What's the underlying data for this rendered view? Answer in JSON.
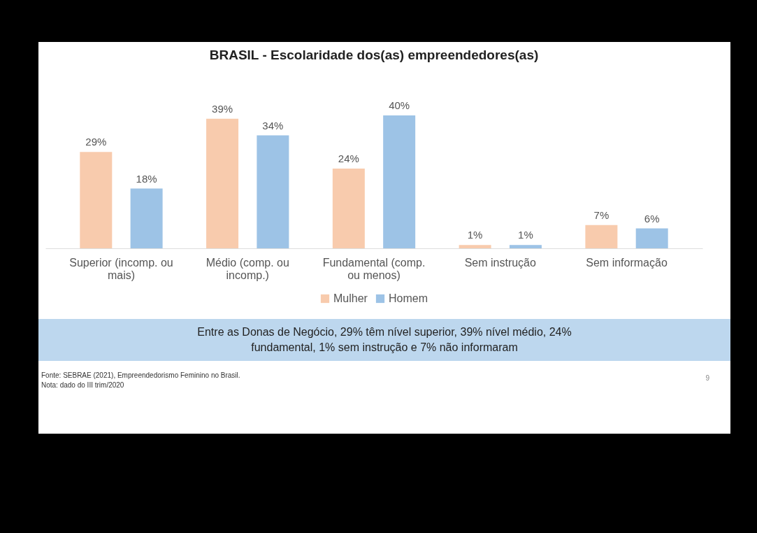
{
  "chart_data": {
    "type": "bar",
    "title": "BRASIL - Escolaridade dos(as) empreendedores(as)",
    "categories": [
      "Superior (incomp. ou mais)",
      "Médio (comp. ou incomp.)",
      "Fundamental (comp. ou menos)",
      "Sem instrução",
      "Sem informação"
    ],
    "series": [
      {
        "name": "Mulher",
        "color": "#f8cbad",
        "values": [
          29,
          39,
          24,
          1,
          7
        ],
        "value_labels": [
          "29%",
          "39%",
          "24%",
          "1%",
          "7%"
        ]
      },
      {
        "name": "Homem",
        "color": "#9dc3e6",
        "values": [
          18,
          34,
          40,
          1,
          6
        ],
        "value_labels": [
          "18%",
          "34%",
          "40%",
          "1%",
          "6%"
        ]
      }
    ],
    "legend": "bottom",
    "annotations": [
      "Entre as Donas de Negócio, 29% têm nível superior, 39% nível médio, 24% fundamental, 1% sem instrução e 7% não informaram",
      "Fonte: SEBRAE (2021), Empreendedorismo Feminino no Brasil.",
      "Nota: dado do III trim/2020",
      "9"
    ]
  }
}
